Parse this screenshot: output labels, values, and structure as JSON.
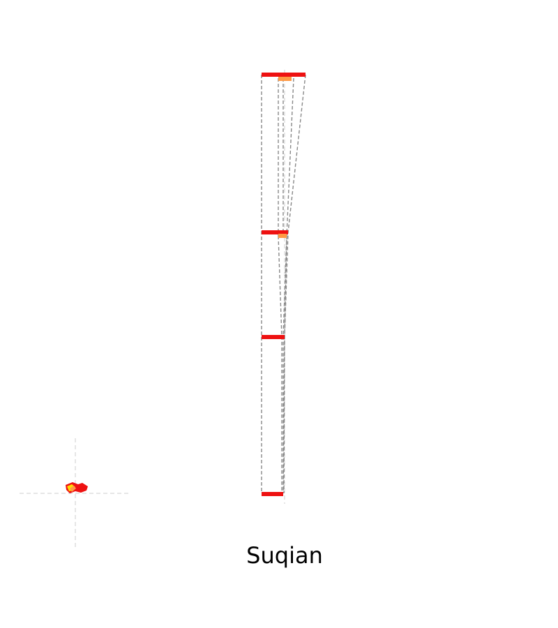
{
  "title": "Suqian",
  "colors": {
    "background": "#ffffff",
    "guide": "#cccccc",
    "connector": "#888888",
    "bar_primary": "#ee1111",
    "bar_secondary": "#ff9944",
    "region_main": "#ee1111",
    "region_highlight": "#ffdd00"
  },
  "map": {
    "region_icon": "city-region-shape",
    "legend": "none"
  }
}
